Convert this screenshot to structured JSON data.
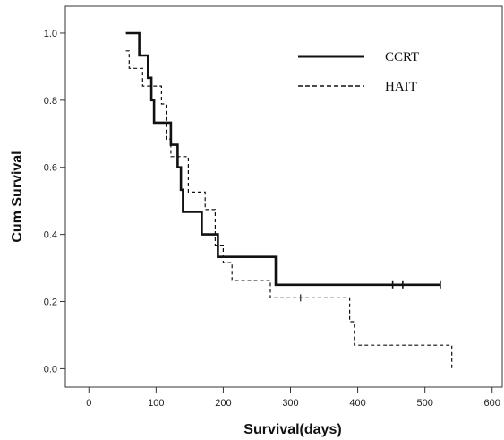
{
  "chart_data": {
    "type": "line",
    "subtype": "kaplan-meier step",
    "title": "",
    "xlabel": "Survival(days)",
    "ylabel": "Cum Survival",
    "xlim": [
      -35,
      615
    ],
    "ylim": [
      -0.055,
      1.08
    ],
    "xticks": [
      0,
      100,
      200,
      300,
      400,
      500,
      600
    ],
    "yticks": [
      0.0,
      0.2,
      0.4,
      0.6,
      0.8,
      1.0
    ],
    "ytick_labels": [
      "0.0",
      "0.2",
      "0.4",
      "0.6",
      "0.8",
      "1.0"
    ],
    "grid": false,
    "legend": "top-right",
    "series": [
      {
        "name": "CCRT",
        "style": "solid",
        "color": "#111111",
        "points": [
          [
            55,
            1.0
          ],
          [
            75,
            1.0
          ],
          [
            75,
            0.933
          ],
          [
            88,
            0.933
          ],
          [
            88,
            0.867
          ],
          [
            93,
            0.867
          ],
          [
            93,
            0.8
          ],
          [
            97,
            0.8
          ],
          [
            97,
            0.733
          ],
          [
            122,
            0.733
          ],
          [
            122,
            0.667
          ],
          [
            132,
            0.667
          ],
          [
            132,
            0.6
          ],
          [
            137,
            0.6
          ],
          [
            137,
            0.533
          ],
          [
            140,
            0.533
          ],
          [
            140,
            0.467
          ],
          [
            168,
            0.467
          ],
          [
            168,
            0.4
          ],
          [
            192,
            0.4
          ],
          [
            192,
            0.333
          ],
          [
            278,
            0.333
          ],
          [
            278,
            0.25
          ],
          [
            523,
            0.25
          ]
        ],
        "censored": [
          452,
          467,
          523
        ]
      },
      {
        "name": "HAIT",
        "style": "dashed",
        "color": "#111111",
        "points": [
          [
            55,
            0.947
          ],
          [
            60,
            0.947
          ],
          [
            60,
            0.895
          ],
          [
            80,
            0.895
          ],
          [
            80,
            0.842
          ],
          [
            108,
            0.842
          ],
          [
            108,
            0.789
          ],
          [
            115,
            0.789
          ],
          [
            115,
            0.684
          ],
          [
            122,
            0.684
          ],
          [
            122,
            0.632
          ],
          [
            148,
            0.632
          ],
          [
            148,
            0.526
          ],
          [
            173,
            0.526
          ],
          [
            173,
            0.474
          ],
          [
            188,
            0.474
          ],
          [
            188,
            0.368
          ],
          [
            200,
            0.368
          ],
          [
            200,
            0.316
          ],
          [
            213,
            0.316
          ],
          [
            213,
            0.263
          ],
          [
            270,
            0.263
          ],
          [
            270,
            0.211
          ],
          [
            388,
            0.211
          ],
          [
            388,
            0.14
          ],
          [
            395,
            0.14
          ],
          [
            395,
            0.07
          ],
          [
            540,
            0.07
          ],
          [
            540,
            0.0
          ]
        ],
        "censored": [
          315
        ]
      }
    ]
  }
}
